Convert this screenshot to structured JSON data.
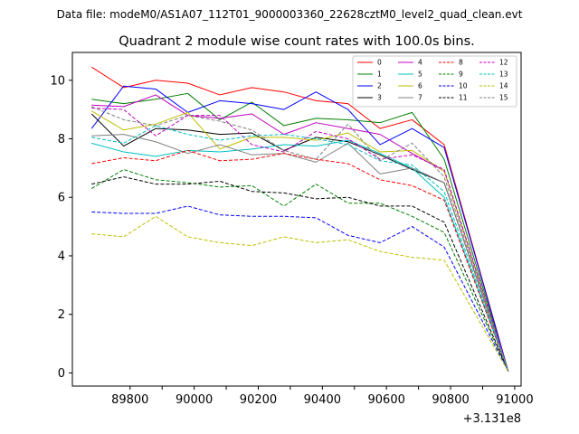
{
  "suptitle": "Data file: modeM0/AS1A07_112T01_9000003360_22628cztM0_level2_quad_clean.evt",
  "chart_data": {
    "type": "line",
    "title": "Quadrant 2 module wise count rates with 100.0s bins.",
    "xlabel": "",
    "ylabel": "",
    "x_offset_label": "+3.131e8",
    "x": [
      89680,
      89780,
      89880,
      89980,
      90080,
      90180,
      90280,
      90380,
      90480,
      90580,
      90680,
      90780,
      90980
    ],
    "xlim": [
      89620,
      91020
    ],
    "ylim": [
      -0.45,
      10.95
    ],
    "xticks": [
      89800,
      89900,
      90000,
      90100,
      90200,
      90300,
      90400,
      90500,
      90600,
      90700,
      90800,
      90900,
      91000
    ],
    "xtick_labels": [
      "89800",
      "",
      "90000",
      "",
      "90200",
      "",
      "90400",
      "",
      "90600",
      "",
      "90800",
      "",
      "91000"
    ],
    "yticks": [
      0,
      2,
      4,
      6,
      8,
      10
    ],
    "ytick_labels": [
      "0",
      "2",
      "4",
      "6",
      "8",
      "10"
    ],
    "legend_position": "top-right",
    "series": [
      {
        "name": "0",
        "color": "#ff0000",
        "dash": "solid",
        "values": [
          10.45,
          9.75,
          10.0,
          9.9,
          9.5,
          9.75,
          9.6,
          9.3,
          9.2,
          8.35,
          8.65,
          7.8,
          0.05
        ]
      },
      {
        "name": "1",
        "color": "#008000",
        "dash": "solid",
        "values": [
          9.35,
          9.2,
          9.35,
          9.55,
          8.65,
          9.25,
          8.45,
          8.7,
          8.65,
          8.55,
          8.9,
          7.3,
          0.05
        ]
      },
      {
        "name": "2",
        "color": "#0000ff",
        "dash": "solid",
        "values": [
          8.35,
          9.8,
          9.7,
          8.9,
          9.3,
          9.2,
          9.0,
          9.6,
          9.0,
          7.8,
          8.35,
          7.7,
          0.05
        ]
      },
      {
        "name": "3",
        "color": "#000000",
        "dash": "solid",
        "values": [
          8.85,
          7.75,
          8.35,
          8.3,
          8.15,
          8.2,
          7.6,
          8.05,
          7.9,
          7.45,
          6.95,
          6.5,
          0.05
        ]
      },
      {
        "name": "4",
        "color": "#c000c0",
        "dash": "solid",
        "values": [
          9.15,
          9.1,
          9.5,
          8.8,
          8.7,
          8.85,
          8.15,
          8.55,
          8.35,
          8.15,
          7.5,
          6.9,
          0.05
        ]
      },
      {
        "name": "5",
        "color": "#00bfbf",
        "dash": "solid",
        "values": [
          7.85,
          7.55,
          7.4,
          7.6,
          7.55,
          7.65,
          7.8,
          7.75,
          7.95,
          7.5,
          7.0,
          6.0,
          0.05
        ]
      },
      {
        "name": "6",
        "color": "#bfbf00",
        "dash": "solid",
        "values": [
          8.95,
          8.3,
          8.5,
          8.9,
          7.65,
          8.05,
          8.05,
          7.95,
          8.2,
          7.55,
          7.6,
          6.9,
          0.05
        ]
      },
      {
        "name": "7",
        "color": "#808080",
        "dash": "solid",
        "values": [
          8.1,
          8.15,
          7.9,
          7.5,
          7.8,
          7.45,
          7.5,
          7.2,
          7.85,
          6.8,
          7.0,
          6.5,
          0.05
        ]
      },
      {
        "name": "8",
        "color": "#ff0000",
        "dash": "dashed",
        "values": [
          7.15,
          7.35,
          7.25,
          7.6,
          7.25,
          7.3,
          7.5,
          7.3,
          7.15,
          6.6,
          6.4,
          5.9,
          0.05
        ]
      },
      {
        "name": "9",
        "color": "#008000",
        "dash": "dashed",
        "values": [
          6.3,
          6.95,
          6.6,
          6.5,
          6.35,
          6.4,
          5.7,
          6.45,
          5.8,
          5.8,
          5.35,
          4.8,
          0.05
        ]
      },
      {
        "name": "10",
        "color": "#0000ff",
        "dash": "dashed",
        "values": [
          5.5,
          5.45,
          5.45,
          5.7,
          5.4,
          5.35,
          5.35,
          5.3,
          4.7,
          4.45,
          5.0,
          4.3,
          0.05
        ]
      },
      {
        "name": "11",
        "color": "#000000",
        "dash": "dashed",
        "values": [
          6.45,
          6.7,
          6.45,
          6.45,
          6.55,
          6.2,
          6.15,
          5.95,
          6.0,
          5.7,
          5.7,
          5.15,
          0.05
        ]
      },
      {
        "name": "12",
        "color": "#c000c0",
        "dash": "dashed",
        "values": [
          9.05,
          9.0,
          8.1,
          8.8,
          8.8,
          7.8,
          7.55,
          8.25,
          8.0,
          7.3,
          7.45,
          6.95,
          0.05
        ]
      },
      {
        "name": "13",
        "color": "#00bfbf",
        "dash": "dashed",
        "values": [
          8.05,
          7.85,
          8.45,
          8.15,
          7.95,
          8.1,
          8.15,
          8.0,
          7.8,
          7.25,
          7.1,
          6.2,
          0.05
        ]
      },
      {
        "name": "14",
        "color": "#bfbf00",
        "dash": "dashed",
        "values": [
          4.75,
          4.65,
          5.35,
          4.65,
          4.45,
          4.35,
          4.65,
          4.45,
          4.55,
          4.15,
          3.95,
          3.85,
          0.05
        ]
      },
      {
        "name": "15",
        "color": "#808080",
        "dash": "dashed",
        "values": [
          9.1,
          8.65,
          8.45,
          8.8,
          8.6,
          8.3,
          7.6,
          7.3,
          8.5,
          7.25,
          7.85,
          6.7,
          0.05
        ]
      }
    ]
  }
}
